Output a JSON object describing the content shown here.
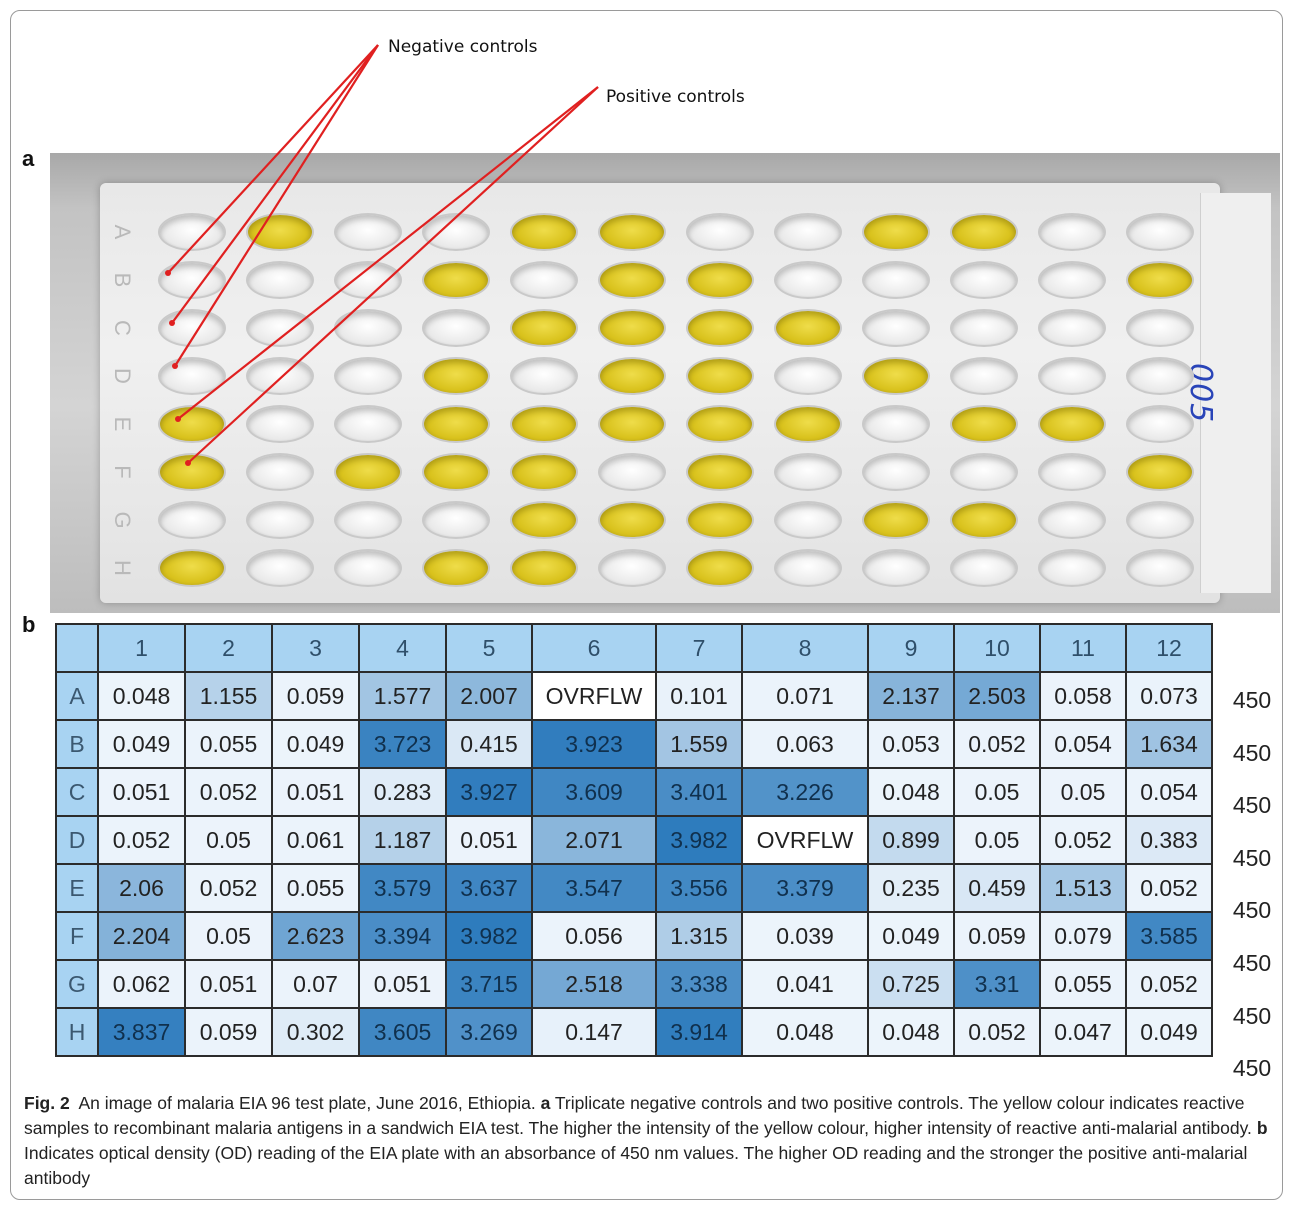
{
  "figure": {
    "panel_a_label": "a",
    "panel_b_label": "b",
    "callouts": {
      "negative": "Negative controls",
      "positive": "Positive controls"
    },
    "plate_annotation": "005",
    "plate_rows": [
      "A",
      "B",
      "C",
      "D",
      "E",
      "F",
      "G",
      "H"
    ],
    "plate_wells": [
      "CYCCYYCCYYCC",
      "CCCYCYYCCCCY",
      "CCCCYYYYCCCC",
      "CCCYCYYCYCCC",
      "YCCYYYYYCYYC",
      "YCYYYCYCCCCY",
      "CCCCYYYCYYCC",
      "YCCYYCYCCCCC"
    ],
    "colors": {
      "yellow_fill": "#d9c21c",
      "empty_fill": "#e9e9e9",
      "arrow": "#e02020",
      "table_header": "#a8d3f2",
      "shade_low": "#eef5fc",
      "shade_high": "#2d7bbd"
    }
  },
  "table": {
    "columns": [
      "1",
      "2",
      "3",
      "4",
      "5",
      "6",
      "7",
      "8",
      "9",
      "10",
      "11",
      "12"
    ],
    "wavelength_label": "450",
    "rows": [
      {
        "row": "A",
        "values": [
          "0.048",
          "1.155",
          "0.059",
          "1.577",
          "2.007",
          "OVRFLW",
          "0.101",
          "0.071",
          "2.137",
          "2.503",
          "0.058",
          "0.073"
        ]
      },
      {
        "row": "B",
        "values": [
          "0.049",
          "0.055",
          "0.049",
          "3.723",
          "0.415",
          "3.923",
          "1.559",
          "0.063",
          "0.053",
          "0.052",
          "0.054",
          "1.634"
        ]
      },
      {
        "row": "C",
        "values": [
          "0.051",
          "0.052",
          "0.051",
          "0.283",
          "3.927",
          "3.609",
          "3.401",
          "3.226",
          "0.048",
          "0.05",
          "0.05",
          "0.054"
        ]
      },
      {
        "row": "D",
        "values": [
          "0.052",
          "0.05",
          "0.061",
          "1.187",
          "0.051",
          "2.071",
          "3.982",
          "OVRFLW",
          "0.899",
          "0.05",
          "0.052",
          "0.383"
        ]
      },
      {
        "row": "E",
        "values": [
          "2.06",
          "0.052",
          "0.055",
          "3.579",
          "3.637",
          "3.547",
          "3.556",
          "3.379",
          "0.235",
          "0.459",
          "1.513",
          "0.052"
        ]
      },
      {
        "row": "F",
        "values": [
          "2.204",
          "0.05",
          "2.623",
          "3.394",
          "3.982",
          "0.056",
          "1.315",
          "0.039",
          "0.049",
          "0.059",
          "0.079",
          "3.585"
        ]
      },
      {
        "row": "G",
        "values": [
          "0.062",
          "0.051",
          "0.07",
          "0.051",
          "3.715",
          "2.518",
          "3.338",
          "0.041",
          "0.725",
          "3.31",
          "0.055",
          "0.052"
        ]
      },
      {
        "row": "H",
        "values": [
          "3.837",
          "0.059",
          "0.302",
          "3.605",
          "3.269",
          "0.147",
          "3.914",
          "0.048",
          "0.048",
          "0.052",
          "0.047",
          "0.049"
        ]
      }
    ]
  },
  "caption": {
    "fig_label": "Fig. 2",
    "lead": "An image of malaria EIA 96 test plate, June 2016, Ethiopia.",
    "a_label": "a",
    "a_text": "Triplicate negative controls and two positive controls. The yellow colour indicates reactive samples to recombinant malaria antigens in a sandwich EIA test. The higher the intensity of the yellow colour, higher intensity of reactive anti-malarial antibody.",
    "b_label": "b",
    "b_text": "Indicates optical density (OD) reading of the EIA plate with an absorbance of 450 nm values. The higher OD reading and the stronger the positive anti-malarial antibody"
  }
}
